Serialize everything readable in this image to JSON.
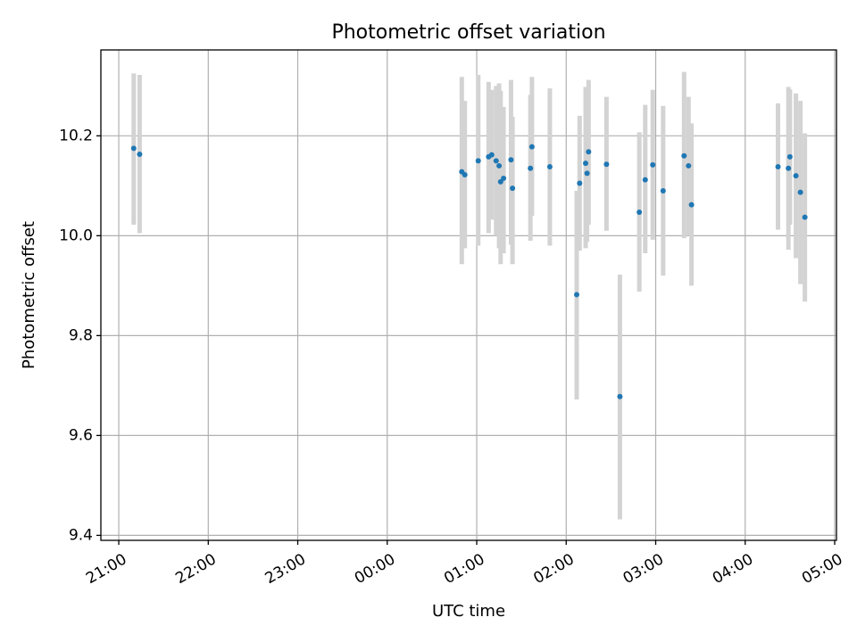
{
  "chart_data": {
    "type": "scatter",
    "title": "Photometric offset variation",
    "xlabel": "UTC time",
    "ylabel": "Photometric offset",
    "x_unit": "hours_from_midnight_UTC",
    "xlim": [
      -3.2,
      5.02
    ],
    "ylim": [
      9.39,
      10.372
    ],
    "x_ticks": [
      {
        "v": -3,
        "label": "21:00"
      },
      {
        "v": -2,
        "label": "22:00"
      },
      {
        "v": -1,
        "label": "23:00"
      },
      {
        "v": 0,
        "label": "00:00"
      },
      {
        "v": 1,
        "label": "01:00"
      },
      {
        "v": 2,
        "label": "02:00"
      },
      {
        "v": 3,
        "label": "03:00"
      },
      {
        "v": 4,
        "label": "04:00"
      },
      {
        "v": 5,
        "label": "05:00"
      }
    ],
    "y_ticks": [
      {
        "v": 9.4,
        "label": "9.4"
      },
      {
        "v": 9.6,
        "label": "9.6"
      },
      {
        "v": 9.8,
        "label": "9.8"
      },
      {
        "v": 10.0,
        "label": "10.0"
      },
      {
        "v": 10.2,
        "label": "10.2"
      }
    ],
    "grid": true,
    "marker_color": "#1f77b4",
    "errorbar_color": "#d3d3d3",
    "points": [
      {
        "x": -2.833,
        "y": 10.175,
        "lo": 10.022,
        "hi": 10.325
      },
      {
        "x": -2.767,
        "y": 10.163,
        "lo": 10.005,
        "hi": 10.322
      },
      {
        "x": 0.833,
        "y": 10.128,
        "lo": 9.943,
        "hi": 10.318
      },
      {
        "x": 0.867,
        "y": 10.122,
        "lo": 9.975,
        "hi": 10.27
      },
      {
        "x": 1.017,
        "y": 10.15,
        "lo": 9.98,
        "hi": 10.322
      },
      {
        "x": 1.133,
        "y": 10.158,
        "lo": 10.005,
        "hi": 10.308
      },
      {
        "x": 1.167,
        "y": 10.162,
        "lo": 10.032,
        "hi": 10.292
      },
      {
        "x": 1.217,
        "y": 10.15,
        "lo": 10.0,
        "hi": 10.3
      },
      {
        "x": 1.25,
        "y": 10.14,
        "lo": 9.975,
        "hi": 10.305
      },
      {
        "x": 1.267,
        "y": 10.108,
        "lo": 9.943,
        "hi": 10.29
      },
      {
        "x": 1.3,
        "y": 10.115,
        "lo": 9.965,
        "hi": 10.258
      },
      {
        "x": 1.383,
        "y": 10.152,
        "lo": 9.982,
        "hi": 10.312
      },
      {
        "x": 1.4,
        "y": 10.095,
        "lo": 9.943,
        "hi": 10.238
      },
      {
        "x": 1.6,
        "y": 10.135,
        "lo": 9.99,
        "hi": 10.282
      },
      {
        "x": 1.617,
        "y": 10.178,
        "lo": 10.04,
        "hi": 10.318
      },
      {
        "x": 1.817,
        "y": 10.138,
        "lo": 9.98,
        "hi": 10.295
      },
      {
        "x": 2.117,
        "y": 9.882,
        "lo": 9.672,
        "hi": 10.09
      },
      {
        "x": 2.15,
        "y": 10.105,
        "lo": 9.97,
        "hi": 10.24
      },
      {
        "x": 2.217,
        "y": 10.145,
        "lo": 9.975,
        "hi": 10.298
      },
      {
        "x": 2.233,
        "y": 10.125,
        "lo": 9.988,
        "hi": 10.265
      },
      {
        "x": 2.25,
        "y": 10.168,
        "lo": 10.022,
        "hi": 10.312
      },
      {
        "x": 2.45,
        "y": 10.143,
        "lo": 10.01,
        "hi": 10.278
      },
      {
        "x": 2.6,
        "y": 9.678,
        "lo": 9.432,
        "hi": 9.922
      },
      {
        "x": 2.817,
        "y": 10.047,
        "lo": 9.888,
        "hi": 10.207
      },
      {
        "x": 2.883,
        "y": 10.112,
        "lo": 9.965,
        "hi": 10.262
      },
      {
        "x": 2.967,
        "y": 10.142,
        "lo": 9.992,
        "hi": 10.292
      },
      {
        "x": 3.083,
        "y": 10.09,
        "lo": 9.92,
        "hi": 10.26
      },
      {
        "x": 3.317,
        "y": 10.16,
        "lo": 9.995,
        "hi": 10.328
      },
      {
        "x": 3.367,
        "y": 10.14,
        "lo": 10.0,
        "hi": 10.278
      },
      {
        "x": 3.4,
        "y": 10.062,
        "lo": 9.9,
        "hi": 10.225
      },
      {
        "x": 4.367,
        "y": 10.138,
        "lo": 10.012,
        "hi": 10.265
      },
      {
        "x": 4.483,
        "y": 10.135,
        "lo": 9.972,
        "hi": 10.298
      },
      {
        "x": 4.5,
        "y": 10.158,
        "lo": 10.022,
        "hi": 10.293
      },
      {
        "x": 4.567,
        "y": 10.12,
        "lo": 9.955,
        "hi": 10.285
      },
      {
        "x": 4.617,
        "y": 10.087,
        "lo": 9.903,
        "hi": 10.27
      },
      {
        "x": 4.667,
        "y": 10.037,
        "lo": 9.868,
        "hi": 10.205
      }
    ]
  }
}
